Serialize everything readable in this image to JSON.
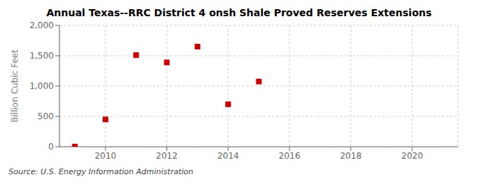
{
  "chart_data": {
    "type": "scatter",
    "title": "Annual Texas--RRC District 4 onsh Shale Proved Reserves Extensions",
    "ylabel": "Billion Cubic Feet",
    "annotations": [
      "Source: U.S. Energy Information Administration"
    ],
    "x": [
      2009,
      2010,
      2011,
      2012,
      2013,
      2014,
      2015
    ],
    "values": [
      2,
      450,
      1510,
      1390,
      1650,
      700,
      1075
    ],
    "color": "#cc0000",
    "marker": "square",
    "xlim": [
      2008.5,
      2021.5
    ],
    "ylim": [
      0,
      2000
    ],
    "xticks": [
      2010,
      2012,
      2014,
      2016,
      2018,
      2020
    ],
    "yticks": [
      0,
      500,
      {
        "value": 1000,
        "label": "1,000"
      },
      {
        "value": 1500,
        "label": "1,500"
      },
      {
        "value": 2000,
        "label": "2,000"
      }
    ],
    "grid": true
  }
}
